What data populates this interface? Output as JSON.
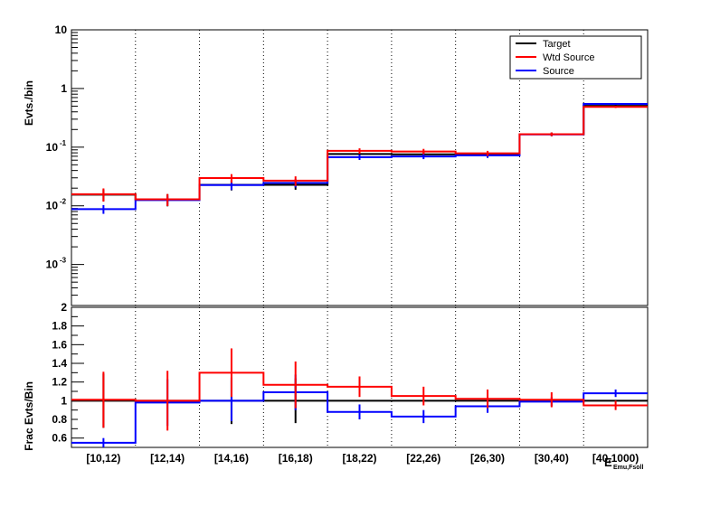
{
  "chart_data": [
    {
      "type": "step",
      "title": "",
      "ylabel": "Evts./bin",
      "yscale": "log",
      "ylim": [
        0.0002,
        10
      ],
      "grid_x": "dotted at bin edges",
      "legend_position": "top-right",
      "categories": [
        "[10,12)",
        "[12,14)",
        "[14,16)",
        "[16,18)",
        "[18,22)",
        "[22,26)",
        "[26,30)",
        "[30,40)",
        "[40,1000)"
      ],
      "ytick_labels": [
        "10",
        "1",
        "10^-1",
        "10^-2",
        "10^-3"
      ],
      "series": [
        {
          "name": "Target",
          "color": "#000000",
          "values": [
            0.0155,
            0.0128,
            0.0228,
            0.0228,
            0.0765,
            0.0755,
            0.0765,
            0.166,
            0.505
          ],
          "errors": [
            0.0035,
            0.003,
            0.0045,
            0.004,
            0.008,
            0.008,
            0.008,
            0.012,
            0.02
          ]
        },
        {
          "name": "Wtd Source",
          "color": "#ff0000",
          "values": [
            0.0158,
            0.0129,
            0.0297,
            0.0268,
            0.0865,
            0.0845,
            0.0785,
            0.166,
            0.485
          ],
          "errors": [
            0.004,
            0.003,
            0.005,
            0.005,
            0.009,
            0.009,
            0.008,
            0.012,
            0.02
          ]
        },
        {
          "name": "Source",
          "color": "#0000ff",
          "values": [
            0.0088,
            0.0125,
            0.0226,
            0.0246,
            0.0675,
            0.0695,
            0.0725,
            0.165,
            0.545
          ],
          "errors": [
            0.0015,
            0.002,
            0.004,
            0.004,
            0.007,
            0.007,
            0.007,
            0.011,
            0.02
          ]
        }
      ]
    },
    {
      "type": "step",
      "title": "",
      "ylabel": "Frac Evts/Bin",
      "ylim": [
        0.5,
        2.0
      ],
      "yticks": [
        0.6,
        0.8,
        1.0,
        1.2,
        1.4,
        1.6,
        1.8,
        2.0
      ],
      "ytick_labels": [
        "0.6",
        "0.8",
        "1",
        "1.2",
        "1.4",
        "1.6",
        "1.8",
        "2"
      ],
      "xlabel": "E",
      "xlabel_subscript": "Emu,Fsoll",
      "categories": [
        "[10,12)",
        "[12,14)",
        "[14,16)",
        "[16,18)",
        "[18,22)",
        "[22,26)",
        "[26,30)",
        "[30,40)",
        "[40,1000)"
      ],
      "series": [
        {
          "name": "Target",
          "color": "#000000",
          "values": [
            1,
            1,
            1,
            1,
            1,
            1,
            1,
            1,
            1
          ],
          "errors": [
            0.29,
            0.0,
            0.25,
            0.24,
            0.0,
            0.0,
            0.0,
            0.0,
            0.0
          ]
        },
        {
          "name": "Wtd Source",
          "color": "#ff0000",
          "values": [
            1.01,
            1.0,
            1.3,
            1.17,
            1.15,
            1.05,
            1.02,
            1.01,
            0.95
          ],
          "errors": [
            0.3,
            0.32,
            0.26,
            0.25,
            0.11,
            0.1,
            0.1,
            0.08,
            0.05
          ]
        },
        {
          "name": "Source",
          "color": "#0000ff",
          "values": [
            0.55,
            0.98,
            1.0,
            1.09,
            0.88,
            0.83,
            0.94,
            0.99,
            1.08
          ],
          "errors": [
            0.05,
            0.25,
            0.22,
            0.19,
            0.08,
            0.07,
            0.07,
            0.05,
            0.04
          ]
        }
      ]
    }
  ]
}
